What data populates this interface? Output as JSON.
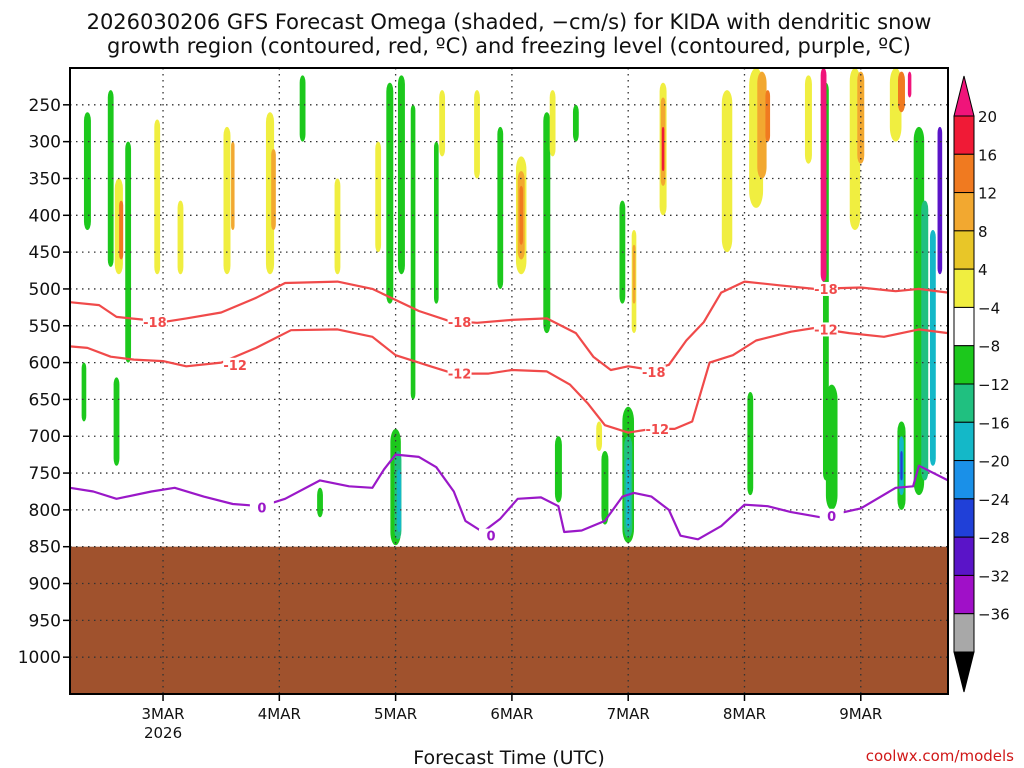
{
  "chart_data": {
    "type": "heatmap",
    "title_line1": "2026030206 GFS Forecast Omega (shaded, −cm/s) for KIDA with dendritic snow",
    "title_line2": "growth region (contoured, red, ºC) and freezing level (contoured, purple, ºC)",
    "xlabel": "Forecast Time (UTC)",
    "x_ticks": [
      "3MAR",
      "4MAR",
      "5MAR",
      "6MAR",
      "7MAR",
      "8MAR",
      "9MAR"
    ],
    "x_year": "2026",
    "x_range_days": [
      2.2,
      9.75
    ],
    "y_label_ticks": [
      250,
      300,
      350,
      400,
      450,
      500,
      550,
      600,
      650,
      700,
      750,
      800,
      850,
      900,
      950,
      1000
    ],
    "y_grid": [
      250,
      300,
      350,
      400,
      450,
      500,
      550,
      600,
      650,
      700,
      750,
      800,
      850,
      900,
      950,
      1000
    ],
    "y_range_hpa": [
      200,
      1050
    ],
    "ground_level_hpa": 850,
    "colorbar_labels": [
      "20",
      "16",
      "12",
      "8",
      "4",
      "−4",
      "−8",
      "−12",
      "−16",
      "−20",
      "−24",
      "−28",
      "−32",
      "−36"
    ],
    "colorbar_colors": [
      "#f01a36",
      "#f07a20",
      "#f2a830",
      "#e8c628",
      "#f0ee40",
      "#ffffff",
      "#1cc81c",
      "#20c080",
      "#14b8c8",
      "#1a90e8",
      "#2040d8",
      "#5a14c8",
      "#a010c8",
      "#a8a8a8"
    ],
    "colorbar_top_color": "#f0147a",
    "colorbar_bottom_color": "#000000",
    "contours": [
      {
        "label": "-18",
        "color": "#f04a4a",
        "x": [
          2.2,
          2.45,
          2.6,
          2.85,
          3.0,
          3.2,
          3.5,
          3.8,
          4.05,
          4.5,
          4.8,
          5.2,
          5.45,
          5.7,
          6.0,
          6.3,
          6.55,
          6.7,
          6.85,
          7.0,
          7.2,
          7.35,
          7.5,
          7.65,
          7.8,
          8.0,
          8.3,
          8.6,
          9.0,
          9.3,
          9.5,
          9.75
        ],
        "p": [
          518,
          522,
          538,
          542,
          545,
          540,
          532,
          512,
          492,
          490,
          500,
          530,
          543,
          546,
          542,
          540,
          560,
          592,
          610,
          605,
          610,
          603,
          570,
          545,
          505,
          490,
          495,
          500,
          498,
          503,
          500,
          505
        ]
      },
      {
        "label": "-12",
        "color": "#f04a4a",
        "x": [
          2.2,
          2.35,
          2.55,
          2.75,
          3.0,
          3.2,
          3.5,
          3.8,
          4.1,
          4.5,
          4.8,
          5.0,
          5.3,
          5.5,
          5.8,
          6.0,
          6.3,
          6.5,
          6.65,
          6.8,
          7.0,
          7.2,
          7.4,
          7.55,
          7.7,
          7.9,
          8.1,
          8.4,
          8.6,
          8.9,
          9.2,
          9.5,
          9.75
        ],
        "p": [
          578,
          580,
          592,
          596,
          598,
          605,
          600,
          580,
          556,
          555,
          565,
          590,
          605,
          615,
          615,
          610,
          612,
          630,
          655,
          685,
          695,
          690,
          690,
          680,
          600,
          590,
          570,
          558,
          553,
          560,
          565,
          555,
          560
        ]
      },
      {
        "label": "0",
        "color": "#9a18c8",
        "x": [
          2.2,
          2.4,
          2.6,
          2.9,
          3.1,
          3.35,
          3.6,
          3.85,
          4.05,
          4.35,
          4.6,
          4.8,
          4.9,
          5.0,
          5.2,
          5.35,
          5.5,
          5.6,
          5.75,
          5.9,
          6.05,
          6.25,
          6.4,
          6.45,
          6.6,
          6.8,
          6.95,
          7.05,
          7.2,
          7.35,
          7.45,
          7.6,
          7.8,
          8.0,
          8.2,
          8.4,
          8.65,
          8.8,
          9.0,
          9.3,
          9.45,
          9.5,
          9.75
        ],
        "p": [
          770,
          775,
          785,
          775,
          770,
          782,
          792,
          795,
          785,
          760,
          768,
          770,
          745,
          725,
          728,
          742,
          775,
          815,
          830,
          812,
          785,
          783,
          795,
          830,
          828,
          815,
          782,
          777,
          782,
          800,
          835,
          840,
          822,
          793,
          795,
          803,
          810,
          805,
          798,
          770,
          768,
          740,
          760
        ]
      }
    ],
    "contour_labels": [
      {
        "text": "-18",
        "x": 2.93,
        "p": 545,
        "color": "#f04a4a"
      },
      {
        "text": "-18",
        "x": 5.55,
        "p": 545,
        "color": "#f04a4a"
      },
      {
        "text": "-18",
        "x": 7.22,
        "p": 613,
        "color": "#f04a4a"
      },
      {
        "text": "-18",
        "x": 8.7,
        "p": 500,
        "color": "#f04a4a"
      },
      {
        "text": "-12",
        "x": 3.62,
        "p": 603,
        "color": "#f04a4a"
      },
      {
        "text": "-12",
        "x": 5.55,
        "p": 615,
        "color": "#f04a4a"
      },
      {
        "text": "-12",
        "x": 7.25,
        "p": 690,
        "color": "#f04a4a"
      },
      {
        "text": "-12",
        "x": 8.7,
        "p": 555,
        "color": "#f04a4a"
      },
      {
        "text": "0",
        "x": 3.85,
        "p": 797,
        "color": "#9a18c8"
      },
      {
        "text": "0",
        "x": 5.82,
        "p": 835,
        "color": "#9a18c8"
      },
      {
        "text": "0",
        "x": 8.75,
        "p": 808,
        "color": "#9a18c8"
      }
    ],
    "blobs": [
      {
        "x": 2.35,
        "w": 0.06,
        "p1": 260,
        "p2": 420,
        "color": "#1cc81c"
      },
      {
        "x": 2.55,
        "w": 0.05,
        "p1": 230,
        "p2": 470,
        "color": "#1cc81c"
      },
      {
        "x": 2.7,
        "w": 0.05,
        "p1": 300,
        "p2": 600,
        "color": "#1cc81c"
      },
      {
        "x": 2.62,
        "w": 0.07,
        "p1": 350,
        "p2": 480,
        "color": "#f0ee40"
      },
      {
        "x": 2.64,
        "w": 0.035,
        "p1": 380,
        "p2": 460,
        "color": "#f07a20"
      },
      {
        "x": 2.95,
        "w": 0.05,
        "p1": 270,
        "p2": 480,
        "color": "#f0ee40"
      },
      {
        "x": 3.15,
        "w": 0.05,
        "p1": 380,
        "p2": 480,
        "color": "#f0ee40"
      },
      {
        "x": 3.55,
        "w": 0.06,
        "p1": 280,
        "p2": 480,
        "color": "#f0ee40"
      },
      {
        "x": 3.6,
        "w": 0.03,
        "p1": 300,
        "p2": 420,
        "color": "#f2a830"
      },
      {
        "x": 3.92,
        "w": 0.07,
        "p1": 260,
        "p2": 480,
        "color": "#f0ee40"
      },
      {
        "x": 3.95,
        "w": 0.04,
        "p1": 310,
        "p2": 420,
        "color": "#f2a830"
      },
      {
        "x": 4.2,
        "w": 0.05,
        "p1": 210,
        "p2": 300,
        "color": "#1cc81c"
      },
      {
        "x": 4.5,
        "w": 0.05,
        "p1": 350,
        "p2": 480,
        "color": "#f0ee40"
      },
      {
        "x": 4.85,
        "w": 0.05,
        "p1": 300,
        "p2": 450,
        "color": "#f0ee40"
      },
      {
        "x": 4.95,
        "w": 0.06,
        "p1": 220,
        "p2": 520,
        "color": "#1cc81c"
      },
      {
        "x": 5.05,
        "w": 0.06,
        "p1": 210,
        "p2": 480,
        "color": "#1cc81c"
      },
      {
        "x": 5.15,
        "w": 0.04,
        "p1": 250,
        "p2": 650,
        "color": "#1cc81c"
      },
      {
        "x": 5.35,
        "w": 0.04,
        "p1": 300,
        "p2": 520,
        "color": "#1cc81c"
      },
      {
        "x": 5.4,
        "w": 0.05,
        "p1": 230,
        "p2": 320,
        "color": "#f0ee40"
      },
      {
        "x": 5.7,
        "w": 0.05,
        "p1": 230,
        "p2": 350,
        "color": "#f0ee40"
      },
      {
        "x": 5.9,
        "w": 0.05,
        "p1": 280,
        "p2": 500,
        "color": "#1cc81c"
      },
      {
        "x": 6.08,
        "w": 0.09,
        "p1": 320,
        "p2": 480,
        "color": "#f0ee40"
      },
      {
        "x": 6.08,
        "w": 0.06,
        "p1": 340,
        "p2": 460,
        "color": "#f2a830"
      },
      {
        "x": 6.08,
        "w": 0.03,
        "p1": 360,
        "p2": 440,
        "color": "#f07a20"
      },
      {
        "x": 6.3,
        "w": 0.06,
        "p1": 260,
        "p2": 560,
        "color": "#1cc81c"
      },
      {
        "x": 6.35,
        "w": 0.05,
        "p1": 230,
        "p2": 320,
        "color": "#f0ee40"
      },
      {
        "x": 6.55,
        "w": 0.05,
        "p1": 250,
        "p2": 300,
        "color": "#1cc81c"
      },
      {
        "x": 6.95,
        "w": 0.05,
        "p1": 380,
        "p2": 520,
        "color": "#1cc81c"
      },
      {
        "x": 7.05,
        "w": 0.04,
        "p1": 420,
        "p2": 560,
        "color": "#f0ee40"
      },
      {
        "x": 7.05,
        "w": 0.025,
        "p1": 440,
        "p2": 520,
        "color": "#f2a830"
      },
      {
        "x": 7.3,
        "w": 0.06,
        "p1": 220,
        "p2": 400,
        "color": "#f0ee40"
      },
      {
        "x": 7.3,
        "w": 0.04,
        "p1": 240,
        "p2": 360,
        "color": "#f2a830"
      },
      {
        "x": 7.3,
        "w": 0.02,
        "p1": 280,
        "p2": 340,
        "color": "#f01a36"
      },
      {
        "x": 7.85,
        "w": 0.09,
        "p1": 230,
        "p2": 450,
        "color": "#f0ee40"
      },
      {
        "x": 8.1,
        "w": 0.12,
        "p1": 200,
        "p2": 390,
        "color": "#f0ee40"
      },
      {
        "x": 8.15,
        "w": 0.08,
        "p1": 205,
        "p2": 350,
        "color": "#f2a830"
      },
      {
        "x": 8.2,
        "w": 0.04,
        "p1": 230,
        "p2": 300,
        "color": "#f07a20"
      },
      {
        "x": 8.55,
        "w": 0.06,
        "p1": 210,
        "p2": 330,
        "color": "#f0ee40"
      },
      {
        "x": 8.7,
        "w": 0.05,
        "p1": 220,
        "p2": 760,
        "color": "#1cc81c"
      },
      {
        "x": 8.68,
        "w": 0.05,
        "p1": 200,
        "p2": 490,
        "color": "#f0147a"
      },
      {
        "x": 8.95,
        "w": 0.09,
        "p1": 200,
        "p2": 420,
        "color": "#f0ee40"
      },
      {
        "x": 9.0,
        "w": 0.06,
        "p1": 205,
        "p2": 330,
        "color": "#f2a830"
      },
      {
        "x": 9.3,
        "w": 0.1,
        "p1": 200,
        "p2": 300,
        "color": "#f0ee40"
      },
      {
        "x": 9.35,
        "w": 0.06,
        "p1": 205,
        "p2": 260,
        "color": "#f07a20"
      },
      {
        "x": 9.42,
        "w": 0.03,
        "p1": 205,
        "p2": 240,
        "color": "#f0147a"
      },
      {
        "x": 9.5,
        "w": 0.09,
        "p1": 280,
        "p2": 780,
        "color": "#1cc81c"
      },
      {
        "x": 9.55,
        "w": 0.06,
        "p1": 380,
        "p2": 760,
        "color": "#20c080"
      },
      {
        "x": 9.62,
        "w": 0.05,
        "p1": 420,
        "p2": 740,
        "color": "#14b8c8"
      },
      {
        "x": 9.68,
        "w": 0.04,
        "p1": 280,
        "p2": 480,
        "color": "#5a14c8"
      },
      {
        "x": 5.0,
        "w": 0.09,
        "p1": 690,
        "p2": 848,
        "color": "#1cc81c"
      },
      {
        "x": 5.02,
        "w": 0.06,
        "p1": 720,
        "p2": 840,
        "color": "#20c080"
      },
      {
        "x": 5.03,
        "w": 0.035,
        "p1": 745,
        "p2": 830,
        "color": "#14b8c8"
      },
      {
        "x": 7.0,
        "w": 0.1,
        "p1": 660,
        "p2": 845,
        "color": "#1cc81c"
      },
      {
        "x": 7.0,
        "w": 0.07,
        "p1": 700,
        "p2": 838,
        "color": "#20c080"
      },
      {
        "x": 7.0,
        "w": 0.04,
        "p1": 730,
        "p2": 825,
        "color": "#14b8c8"
      },
      {
        "x": 6.8,
        "w": 0.06,
        "p1": 720,
        "p2": 820,
        "color": "#1cc81c"
      },
      {
        "x": 6.75,
        "w": 0.05,
        "p1": 680,
        "p2": 720,
        "color": "#f0ee40"
      },
      {
        "x": 8.75,
        "w": 0.1,
        "p1": 630,
        "p2": 800,
        "color": "#1cc81c"
      },
      {
        "x": 9.35,
        "w": 0.07,
        "p1": 680,
        "p2": 800,
        "color": "#1cc81c"
      },
      {
        "x": 9.35,
        "w": 0.04,
        "p1": 700,
        "p2": 780,
        "color": "#14b8c8"
      },
      {
        "x": 9.35,
        "w": 0.02,
        "p1": 720,
        "p2": 760,
        "color": "#2040d8"
      },
      {
        "x": 8.05,
        "w": 0.05,
        "p1": 640,
        "p2": 780,
        "color": "#1cc81c"
      },
      {
        "x": 2.6,
        "w": 0.05,
        "p1": 620,
        "p2": 740,
        "color": "#1cc81c"
      },
      {
        "x": 4.35,
        "w": 0.05,
        "p1": 770,
        "p2": 810,
        "color": "#1cc81c"
      },
      {
        "x": 6.4,
        "w": 0.06,
        "p1": 700,
        "p2": 790,
        "color": "#1cc81c"
      },
      {
        "x": 2.32,
        "w": 0.04,
        "p1": 600,
        "p2": 680,
        "color": "#1cc81c"
      }
    ]
  },
  "footer": {
    "credit": "coolwx.com/models"
  }
}
